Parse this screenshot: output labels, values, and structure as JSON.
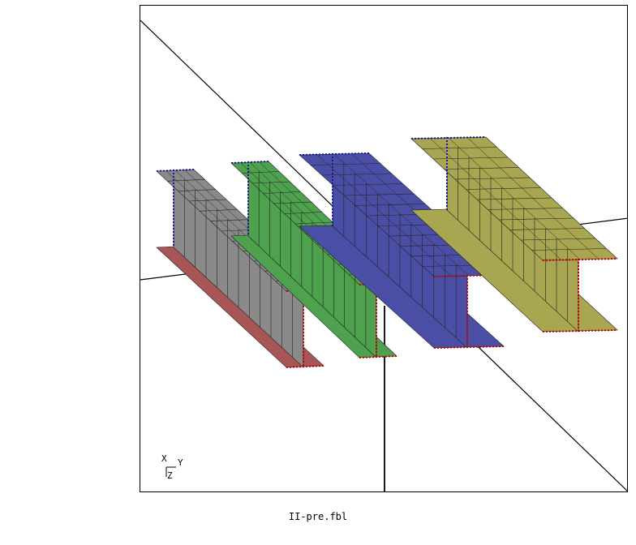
{
  "viewer": {
    "file_name": "II-pre.fbl",
    "triad": {
      "x_label": "X",
      "y_label": "Y",
      "z_label": "Z"
    }
  },
  "beams": [
    {
      "id": "beam-1",
      "top_color": "#8a8a8a",
      "bottom_color": "#a85555",
      "web_color": "#8a8a8a",
      "edge_color": "#cc0000",
      "node_color": "#1a1aa0"
    },
    {
      "id": "beam-2",
      "top_color": "#4ea24e",
      "bottom_color": "#4ea24e",
      "web_color": "#4ea24e",
      "edge_color": "#cc0000",
      "node_color": "#1a1aa0"
    },
    {
      "id": "beam-3",
      "top_color": "#4a4fa5",
      "bottom_color": "#4a4fa5",
      "web_color": "#4a4fa5",
      "edge_color": "#cc0000",
      "node_color": "#1a1aa0"
    },
    {
      "id": "beam-4",
      "top_color": "#a8a650",
      "bottom_color": "#a8a650",
      "web_color": "#a8a650",
      "edge_color": "#cc0000",
      "node_color": "#1a1aa0"
    }
  ]
}
